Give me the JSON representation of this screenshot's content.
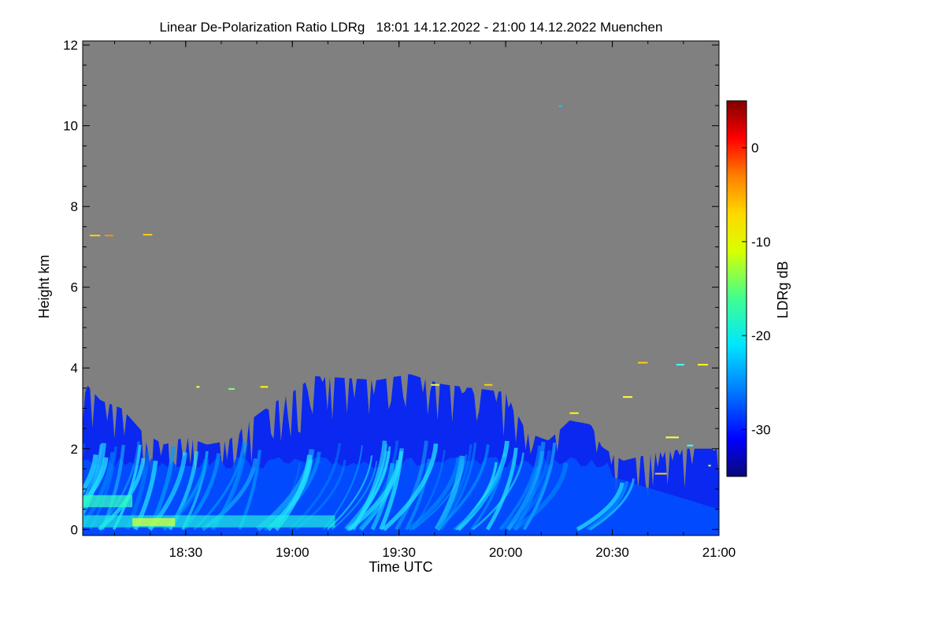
{
  "chart_data": {
    "type": "heatmap",
    "title": "Linear De-Polarization Ratio LDRg   18:01 14.12.2022 - 21:00 14.12.2022 Muenchen",
    "xlabel": "Time UTC",
    "ylabel": "Height km",
    "colorbar_label": "LDRg dB",
    "x_range_hours": [
      18.017,
      21.0
    ],
    "y_range_km": [
      -0.15,
      12.1
    ],
    "x_ticks": [
      {
        "label": "18:30",
        "value": 18.5
      },
      {
        "label": "19:00",
        "value": 19.0
      },
      {
        "label": "19:30",
        "value": 19.5
      },
      {
        "label": "20:00",
        "value": 20.0
      },
      {
        "label": "20:30",
        "value": 20.5
      },
      {
        "label": "21:00",
        "value": 21.0
      }
    ],
    "y_ticks": [
      {
        "label": "0",
        "value": 0
      },
      {
        "label": "2",
        "value": 2
      },
      {
        "label": "4",
        "value": 4
      },
      {
        "label": "6",
        "value": 6
      },
      {
        "label": "8",
        "value": 8
      },
      {
        "label": "10",
        "value": 10
      },
      {
        "label": "12",
        "value": 12
      }
    ],
    "colorbar_range_db": [
      -35,
      5
    ],
    "colorbar_ticks": [
      {
        "label": "0",
        "value": 0
      },
      {
        "label": "-10",
        "value": -10
      },
      {
        "label": "-20",
        "value": -20
      },
      {
        "label": "-30",
        "value": -30
      }
    ],
    "background_color": "#808080",
    "signal_top_profile": [
      {
        "t": 18.017,
        "h": 3.7
      },
      {
        "t": 18.1,
        "h": 3.2
      },
      {
        "t": 18.2,
        "h": 3.0
      },
      {
        "t": 18.3,
        "h": 2.4
      },
      {
        "t": 18.4,
        "h": 2.1
      },
      {
        "t": 18.5,
        "h": 2.3
      },
      {
        "t": 18.6,
        "h": 2.1
      },
      {
        "t": 18.7,
        "h": 2.2
      },
      {
        "t": 18.8,
        "h": 2.7
      },
      {
        "t": 18.9,
        "h": 3.1
      },
      {
        "t": 19.0,
        "h": 3.4
      },
      {
        "t": 19.1,
        "h": 3.8
      },
      {
        "t": 19.25,
        "h": 3.75
      },
      {
        "t": 19.4,
        "h": 3.7
      },
      {
        "t": 19.55,
        "h": 3.85
      },
      {
        "t": 19.7,
        "h": 3.6
      },
      {
        "t": 19.85,
        "h": 3.5
      },
      {
        "t": 20.0,
        "h": 3.4
      },
      {
        "t": 20.1,
        "h": 2.4
      },
      {
        "t": 20.2,
        "h": 2.2
      },
      {
        "t": 20.3,
        "h": 2.7
      },
      {
        "t": 20.4,
        "h": 2.6
      },
      {
        "t": 20.45,
        "h": 2.05
      },
      {
        "t": 20.55,
        "h": 1.7
      },
      {
        "t": 20.7,
        "h": 1.9
      },
      {
        "t": 20.85,
        "h": 2.0
      },
      {
        "t": 21.0,
        "h": 2.0
      }
    ],
    "colormap_stops": [
      {
        "v": -35,
        "color": "#0a0a78"
      },
      {
        "v": -31,
        "color": "#0000ff"
      },
      {
        "v": -26,
        "color": "#0078ff"
      },
      {
        "v": -21,
        "color": "#00e6ff"
      },
      {
        "v": -16,
        "color": "#40ff90"
      },
      {
        "v": -11,
        "color": "#d8ff00"
      },
      {
        "v": -7,
        "color": "#ffd800"
      },
      {
        "v": -3,
        "color": "#ff8000"
      },
      {
        "v": 1,
        "color": "#ff0000"
      },
      {
        "v": 5,
        "color": "#800000"
      }
    ]
  }
}
